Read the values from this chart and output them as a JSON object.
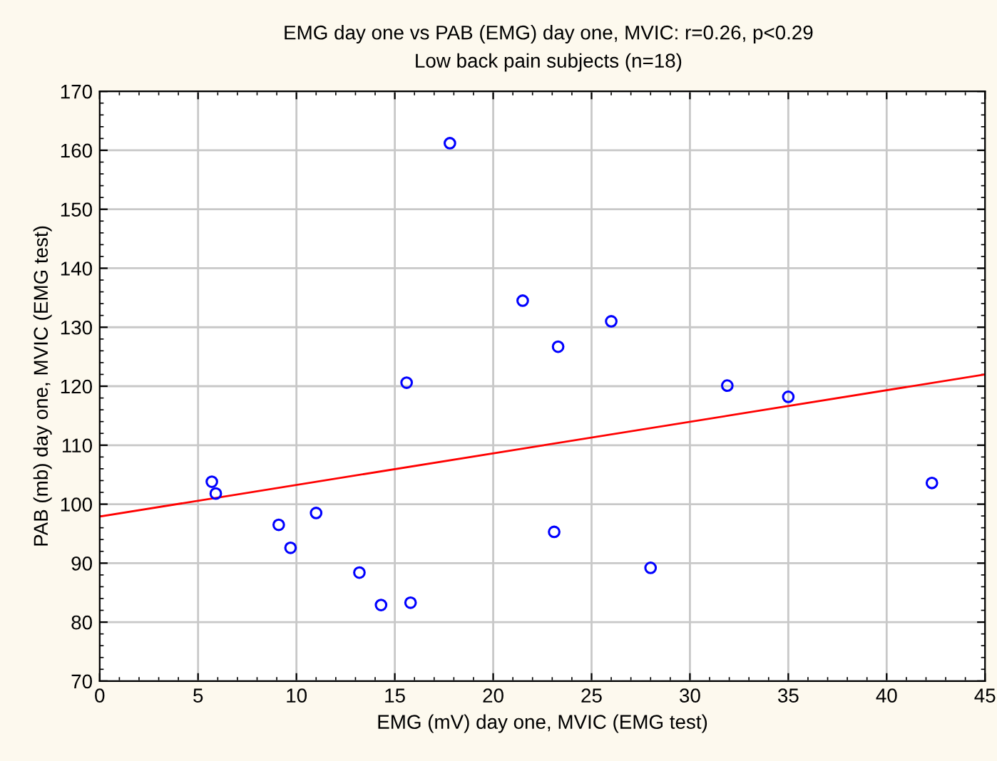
{
  "chart_data": {
    "type": "scatter",
    "title": "EMG day one vs PAB (EMG) day one, MVIC: r=0.26, p<0.29",
    "subtitle": "Low back pain subjects (n=18)",
    "xlabel": "EMG (mV) day one, MVIC (EMG test)",
    "ylabel": "PAB (mb) day one, MVIC (EMG test)",
    "xlim": [
      0,
      45
    ],
    "xticks": [
      0,
      5,
      10,
      15,
      20,
      25,
      30,
      35,
      40,
      45
    ],
    "ylim": [
      70,
      170
    ],
    "yticks": [
      70,
      80,
      90,
      100,
      110,
      120,
      130,
      140,
      150,
      160,
      170
    ],
    "grid": true,
    "marker": "circle",
    "legend": false,
    "series": [
      {
        "color": "#0000ff",
        "x": [
          5.7,
          5.9,
          9.1,
          9.7,
          11.0,
          13.2,
          14.3,
          15.8,
          15.6,
          17.8,
          21.5,
          23.3,
          23.1,
          26.0,
          28.0,
          31.9,
          35.0,
          42.3
        ],
        "values": [
          103.8,
          101.8,
          96.5,
          92.6,
          98.5,
          88.4,
          82.9,
          83.3,
          120.6,
          161.2,
          134.5,
          126.7,
          95.3,
          131.0,
          89.2,
          120.1,
          118.2,
          103.6
        ]
      },
      {
        "type": "line",
        "color": "#ff0000",
        "marker": "none",
        "x": [
          0,
          45
        ],
        "values": [
          97.9,
          122.0
        ]
      }
    ]
  }
}
